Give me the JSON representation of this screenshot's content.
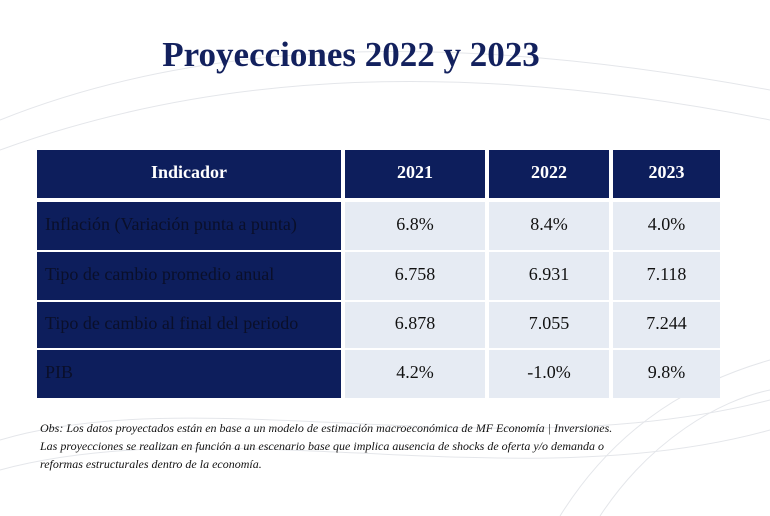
{
  "header": {
    "title": "Proyecciones 2022 y 2023"
  },
  "table": {
    "columns": [
      "Indicador",
      "2021",
      "2022",
      "2023"
    ],
    "rows": [
      [
        "Inflación (Variación punta a punta)",
        "6.8%",
        "8.4%",
        "4.0%"
      ],
      [
        "Tipo de cambio promedio anual",
        "6.758",
        "6.931",
        "7.118"
      ],
      [
        "Tipo de cambio al final del periodo",
        "6.878",
        "7.055",
        "7.244"
      ],
      [
        "PIB",
        "4.2%",
        "-1.0%",
        "9.8%"
      ]
    ]
  },
  "note": {
    "lines": [
      "Obs: Los datos proyectados están en base a un modelo de estimación macroeconómica de MF Economía | Inversiones.",
      "Las proyecciones se realizan en función a un escenario base que implica ausencia de shocks de oferta y/o demanda o",
      "reformas estructurales dentro de la economía."
    ]
  }
}
